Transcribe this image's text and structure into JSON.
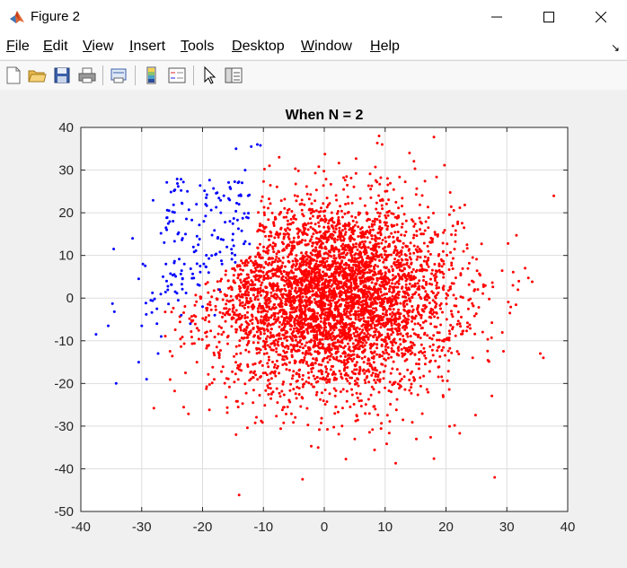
{
  "window": {
    "title": "Figure 2"
  },
  "menu": [
    "File",
    "Edit",
    "View",
    "Insert",
    "Tools",
    "Desktop",
    "Window",
    "Help"
  ],
  "toolbar_icons": [
    "new-figure-icon",
    "open-file-icon",
    "save-icon",
    "print-icon",
    "print-preview-icon",
    "insert-colorbar-icon",
    "insert-legend-icon",
    "pointer-icon",
    "property-editor-icon"
  ],
  "colors": {
    "class_a": "#0000ff",
    "class_b": "#ff0000",
    "grid": "#dedede",
    "axes_bg": "#ffffff"
  },
  "chart_data": {
    "type": "scatter",
    "title": "When N = 2",
    "xlabel": "",
    "ylabel": "",
    "xlim": [
      -40,
      40
    ],
    "ylim": [
      -50,
      40
    ],
    "xticks": [
      -40,
      -30,
      -20,
      -10,
      0,
      10,
      20,
      30,
      40
    ],
    "yticks": [
      40,
      30,
      20,
      10,
      0,
      -10,
      -20,
      -30,
      -40,
      -50
    ],
    "grid": true,
    "series": [
      {
        "color": "#0000ff",
        "points": [
          [
            -37.5,
            -8.5
          ],
          [
            -35.5,
            -6.5
          ],
          [
            -34.8,
            -1.3
          ],
          [
            -34.5,
            -3.2
          ],
          [
            -34.6,
            11.5
          ],
          [
            -34.2,
            -20
          ],
          [
            -31.5,
            14
          ],
          [
            -30.5,
            -15
          ],
          [
            -30.5,
            4.5
          ],
          [
            -29.8,
            8
          ],
          [
            -30,
            -6.5
          ],
          [
            -29.2,
            -19
          ],
          [
            -28.5,
            -0.5
          ],
          [
            -27.5,
            -6
          ],
          [
            -27.3,
            -13
          ],
          [
            -27.5,
            -2.5
          ],
          [
            -26.8,
            -9
          ],
          [
            -26.5,
            5
          ],
          [
            -26.3,
            13
          ],
          [
            -26,
            16.5
          ],
          [
            -25.8,
            20.6
          ],
          [
            -25.5,
            20.5
          ],
          [
            -24.5,
            1.5
          ],
          [
            -24,
            -0.5
          ],
          [
            -23.5,
            -4
          ],
          [
            -23,
            8
          ],
          [
            -22.8,
            15
          ],
          [
            -22.5,
            25
          ],
          [
            -22,
            -6
          ],
          [
            -21.5,
            12
          ],
          [
            -21,
            22
          ],
          [
            -20.5,
            3
          ],
          [
            -20,
            -2
          ],
          [
            -19.8,
            18
          ],
          [
            -19.5,
            22
          ],
          [
            -19,
            6
          ],
          [
            -18.5,
            10
          ],
          [
            -18,
            -4
          ],
          [
            -17.5,
            14
          ],
          [
            -17.2,
            2
          ],
          [
            -17,
            20
          ],
          [
            -16.8,
            8
          ],
          [
            -16.5,
            24
          ],
          [
            -16,
            12
          ],
          [
            -15.5,
            18
          ],
          [
            -15,
            15
          ],
          [
            -14.5,
            35
          ],
          [
            -14,
            22
          ],
          [
            -13.5,
            27
          ],
          [
            -12,
            35.5
          ],
          [
            -11,
            36
          ],
          [
            -10.5,
            35.8
          ],
          [
            -13,
            30
          ],
          [
            -12.5,
            24
          ],
          [
            -15.5,
            26
          ]
        ]
      },
      {
        "color": "#ff0000",
        "center": [
          1.5,
          0
        ],
        "sd": [
          10,
          11
        ],
        "count": 4800,
        "outliers": [
          [
            28,
            -42
          ],
          [
            9,
            38
          ],
          [
            -1,
            -35
          ],
          [
            36,
            -14
          ],
          [
            35.5,
            -13
          ],
          [
            33,
            7
          ],
          [
            31,
            3
          ],
          [
            30.5,
            -3.5
          ],
          [
            -28,
            -25.8
          ],
          [
            14,
            34
          ],
          [
            -14.5,
            -32
          ],
          [
            5,
            -33
          ],
          [
            -9,
            31
          ],
          [
            9.5,
            36
          ]
        ]
      }
    ]
  }
}
